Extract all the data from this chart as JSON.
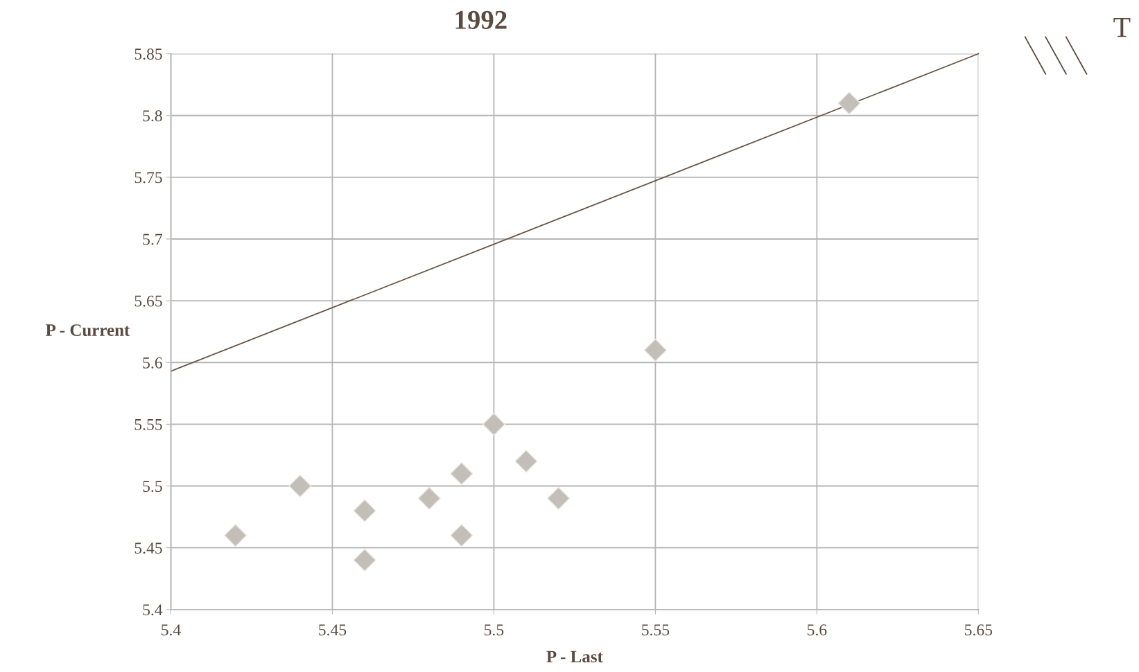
{
  "chart_data": {
    "type": "scatter",
    "title": "1992",
    "xlabel": "P - Last",
    "ylabel": "P - Current",
    "xlim": [
      5.4,
      5.65
    ],
    "xticks": [
      5.4,
      5.45,
      5.5,
      5.55,
      5.6,
      5.65
    ],
    "ylim": [
      5.4,
      5.85
    ],
    "yticks": [
      5.4,
      5.45,
      5.5,
      5.55,
      5.6,
      5.65,
      5.7,
      5.75,
      5.8,
      5.85
    ],
    "grid": true,
    "marker": "diamond",
    "series": [
      {
        "color": "#c4beb8",
        "x": [
          5.42,
          5.44,
          5.46,
          5.46,
          5.48,
          5.49,
          5.49,
          5.5,
          5.51,
          5.52,
          5.55,
          5.61
        ],
        "values": [
          5.46,
          5.5,
          5.48,
          5.44,
          5.49,
          5.51,
          5.46,
          5.55,
          5.52,
          5.49,
          5.61,
          5.81
        ]
      },
      {
        "type": "line",
        "marker": "none",
        "color": "#6b5444",
        "x": [
          5.4,
          5.65
        ],
        "values": [
          5.593,
          5.85
        ]
      }
    ],
    "annotations": [
      "T"
    ]
  }
}
